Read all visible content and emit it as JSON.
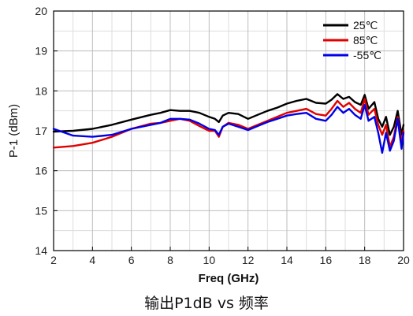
{
  "caption": "输出P1dB vs 频率",
  "chart_data": {
    "type": "line",
    "xlabel": "Freq (GHz)",
    "ylabel": "P-1 (dBm)",
    "xlim": [
      2,
      20
    ],
    "ylim": [
      14,
      20
    ],
    "xticks": [
      2,
      4,
      6,
      8,
      10,
      12,
      14,
      16,
      18,
      20
    ],
    "yticks": [
      14,
      15,
      16,
      17,
      18,
      19,
      20
    ],
    "grid": true,
    "legend_position": "top-right",
    "series": [
      {
        "name": "25℃",
        "color": "#000000",
        "x": [
          2,
          3,
          4,
          5,
          6,
          7,
          7.5,
          8,
          8.5,
          9,
          9.5,
          10,
          10.3,
          10.5,
          10.7,
          11,
          11.5,
          12,
          12.5,
          13,
          13.5,
          14,
          14.5,
          15,
          15.5,
          16,
          16.3,
          16.6,
          16.9,
          17.2,
          17.5,
          17.8,
          18,
          18.2,
          18.5,
          18.7,
          18.9,
          19.1,
          19.3,
          19.5,
          19.7,
          19.9,
          20
        ],
        "y": [
          16.98,
          17.0,
          17.05,
          17.15,
          17.28,
          17.4,
          17.45,
          17.52,
          17.5,
          17.5,
          17.45,
          17.35,
          17.3,
          17.22,
          17.38,
          17.45,
          17.42,
          17.3,
          17.4,
          17.5,
          17.58,
          17.68,
          17.75,
          17.8,
          17.7,
          17.68,
          17.78,
          17.92,
          17.8,
          17.85,
          17.72,
          17.65,
          17.9,
          17.55,
          17.72,
          17.3,
          17.1,
          17.35,
          16.9,
          17.1,
          17.5,
          16.9,
          17.15
        ]
      },
      {
        "name": "85℃",
        "color": "#e00000",
        "x": [
          2,
          3,
          4,
          5,
          6,
          7,
          7.5,
          8,
          8.5,
          9,
          9.5,
          10,
          10.3,
          10.5,
          10.7,
          11,
          11.5,
          12,
          12.5,
          13,
          13.5,
          14,
          14.5,
          15,
          15.5,
          16,
          16.3,
          16.6,
          16.9,
          17.2,
          17.5,
          17.8,
          18,
          18.2,
          18.5,
          18.7,
          18.9,
          19.1,
          19.3,
          19.5,
          19.7,
          19.9,
          20
        ],
        "y": [
          16.58,
          16.62,
          16.7,
          16.85,
          17.05,
          17.18,
          17.2,
          17.25,
          17.3,
          17.25,
          17.12,
          17.0,
          17.0,
          16.85,
          17.1,
          17.2,
          17.15,
          17.05,
          17.15,
          17.25,
          17.35,
          17.45,
          17.5,
          17.55,
          17.42,
          17.38,
          17.55,
          17.75,
          17.6,
          17.7,
          17.55,
          17.45,
          17.8,
          17.4,
          17.55,
          17.15,
          16.9,
          17.15,
          16.6,
          16.85,
          17.35,
          16.7,
          17.0
        ]
      },
      {
        "name": "-55℃",
        "color": "#0000e6",
        "x": [
          2,
          3,
          4,
          5,
          6,
          7,
          7.5,
          8,
          8.5,
          9,
          9.5,
          10,
          10.3,
          10.5,
          10.7,
          11,
          11.5,
          12,
          12.5,
          13,
          13.5,
          14,
          14.5,
          15,
          15.5,
          16,
          16.3,
          16.6,
          16.9,
          17.2,
          17.5,
          17.8,
          18,
          18.2,
          18.5,
          18.7,
          18.9,
          19.1,
          19.3,
          19.5,
          19.7,
          19.9,
          20
        ],
        "y": [
          17.05,
          16.88,
          16.85,
          16.9,
          17.05,
          17.15,
          17.2,
          17.3,
          17.3,
          17.28,
          17.18,
          17.05,
          17.02,
          16.9,
          17.1,
          17.18,
          17.1,
          17.02,
          17.12,
          17.22,
          17.3,
          17.38,
          17.42,
          17.45,
          17.3,
          17.25,
          17.4,
          17.6,
          17.45,
          17.55,
          17.4,
          17.3,
          17.65,
          17.25,
          17.35,
          16.95,
          16.45,
          16.95,
          16.5,
          16.75,
          17.3,
          16.55,
          16.95
        ]
      }
    ]
  }
}
